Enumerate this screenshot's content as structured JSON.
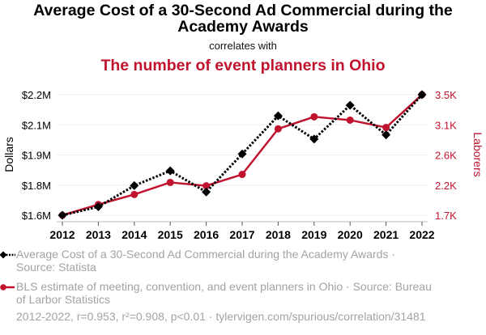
{
  "header": {
    "title": "Average Cost of a 30-Second Ad Commercial during the Academy Awards",
    "subtitle": "correlates with",
    "title2": "The number of event planners in Ohio"
  },
  "legend": {
    "series1": "Average Cost of a 30-Second Ad Commercial during the Academy Awards · Source: Statista",
    "series2": "BLS estimate of meeting, convention, and event planners in Ohio · Source: Bureau of Larbor Statistics"
  },
  "footer": "2012-2022, r=0.953, r²=0.908, p<0.01 · tylervigen.com/spurious/correlation/31481",
  "chart_data": {
    "type": "line",
    "title": "Average Cost of a 30-Second Ad Commercial during the Academy Awards correlates with The number of event planners in Ohio",
    "x": [
      2012,
      2013,
      2014,
      2015,
      2016,
      2017,
      2018,
      2019,
      2020,
      2021,
      2022
    ],
    "xtick_labels": [
      "2012",
      "2013",
      "2014",
      "2015",
      "2016",
      "2017",
      "2018",
      "2019",
      "2020",
      "2021",
      "2022"
    ],
    "ylabel_left": "Dollars",
    "ylabel_right": "Laborers",
    "ylim_left": [
      1.64,
      2.21
    ],
    "ylim_right": [
      1700,
      3500
    ],
    "yticks_left": [
      "$1.6M",
      "$1.8M",
      "$1.9M",
      "$2.1M",
      "$2.2M"
    ],
    "yticks_right": [
      "1.7K",
      "2.2K",
      "2.6K",
      "3.1K",
      "3.5K"
    ],
    "grid": true,
    "legend_position": "bottom",
    "series": [
      {
        "name": "Average Cost of a 30-Second Ad Commercial during the Academy Awards",
        "axis": "left",
        "units": "million USD",
        "color": "#000000",
        "style": "dotted",
        "marker": "diamond",
        "values": [
          1.64,
          1.68,
          1.78,
          1.85,
          1.75,
          1.93,
          2.11,
          2.0,
          2.16,
          2.02,
          2.21
        ]
      },
      {
        "name": "BLS estimate of meeting, convention, and event planners in Ohio",
        "axis": "right",
        "units": "laborers",
        "color": "#c0132e",
        "style": "solid",
        "marker": "circle",
        "values": [
          1700,
          1860,
          2010,
          2190,
          2140,
          2310,
          2990,
          3170,
          3120,
          3010,
          3500
        ]
      }
    ]
  }
}
